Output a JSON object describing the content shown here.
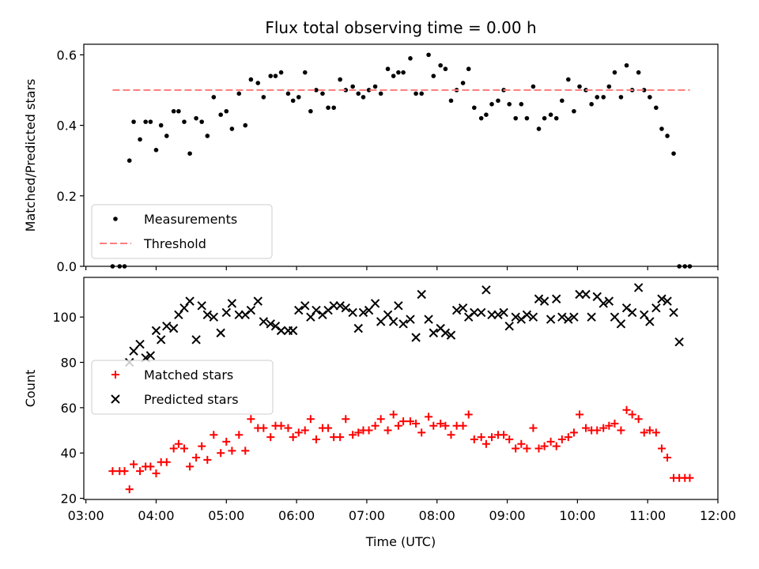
{
  "chart_data": {
    "title": "Flux total observing time = 0.00 h",
    "xlabel": "Time (UTC)",
    "x_ticks": [
      "03:00",
      "04:00",
      "05:00",
      "06:00",
      "07:00",
      "08:00",
      "09:00",
      "10:00",
      "11:00",
      "12:00"
    ],
    "x_range_hours": [
      2.97,
      12.0
    ],
    "panels": [
      {
        "name": "ratio-panel",
        "type": "scatter",
        "ylabel": "Matched/Predicted stars",
        "ylim": [
          0,
          0.63
        ],
        "y_ticks": [
          0.0,
          0.2,
          0.4,
          0.6
        ],
        "legend_position": "lower-left",
        "series": [
          {
            "name": "Measurements",
            "marker": "dot",
            "color": "#000000",
            "x": [
              3.38,
              3.48,
              3.55,
              3.62,
              3.68,
              3.77,
              3.85,
              3.92,
              4.0,
              4.07,
              4.15,
              4.25,
              4.32,
              4.4,
              4.48,
              4.57,
              4.65,
              4.73,
              4.82,
              4.92,
              5.0,
              5.08,
              5.18,
              5.27,
              5.35,
              5.45,
              5.53,
              5.63,
              5.7,
              5.78,
              5.88,
              5.95,
              6.03,
              6.12,
              6.2,
              6.28,
              6.37,
              6.45,
              6.53,
              6.62,
              6.7,
              6.8,
              6.88,
              6.95,
              7.03,
              7.12,
              7.2,
              7.3,
              7.38,
              7.45,
              7.52,
              7.62,
              7.7,
              7.78,
              7.88,
              7.95,
              8.05,
              8.12,
              8.2,
              8.28,
              8.37,
              8.45,
              8.53,
              8.63,
              8.7,
              8.78,
              8.87,
              8.95,
              9.03,
              9.12,
              9.2,
              9.28,
              9.37,
              9.45,
              9.53,
              9.62,
              9.7,
              9.78,
              9.87,
              9.95,
              10.03,
              10.12,
              10.2,
              10.28,
              10.37,
              10.45,
              10.53,
              10.62,
              10.7,
              10.78,
              10.87,
              10.95,
              11.03,
              11.12,
              11.2,
              11.28,
              11.37,
              11.45,
              11.53,
              11.6
            ],
            "y": [
              0.0,
              0.0,
              0.0,
              0.3,
              0.41,
              0.36,
              0.41,
              0.41,
              0.33,
              0.4,
              0.37,
              0.44,
              0.44,
              0.41,
              0.32,
              0.42,
              0.41,
              0.37,
              0.48,
              0.43,
              0.44,
              0.39,
              0.49,
              0.4,
              0.53,
              0.52,
              0.48,
              0.54,
              0.54,
              0.55,
              0.49,
              0.47,
              0.48,
              0.55,
              0.44,
              0.5,
              0.49,
              0.45,
              0.45,
              0.53,
              0.5,
              0.51,
              0.49,
              0.48,
              0.5,
              0.51,
              0.49,
              0.56,
              0.54,
              0.55,
              0.55,
              0.59,
              0.49,
              0.49,
              0.6,
              0.54,
              0.57,
              0.56,
              0.47,
              0.5,
              0.52,
              0.56,
              0.45,
              0.42,
              0.43,
              0.46,
              0.47,
              0.5,
              0.46,
              0.42,
              0.46,
              0.42,
              0.51,
              0.39,
              0.42,
              0.43,
              0.42,
              0.47,
              0.53,
              0.44,
              0.51,
              0.5,
              0.46,
              0.48,
              0.48,
              0.51,
              0.55,
              0.48,
              0.57,
              0.5,
              0.55,
              0.5,
              0.48,
              0.45,
              0.39,
              0.37,
              0.32,
              0.0,
              0.0,
              0.0
            ]
          },
          {
            "name": "Threshold",
            "marker": "dashed-line",
            "color": "#ff7f7f",
            "x": [
              3.38,
              11.6
            ],
            "y": [
              0.5,
              0.5
            ]
          }
        ]
      },
      {
        "name": "count-panel",
        "type": "scatter",
        "ylabel": "Count",
        "ylim": [
          19.5,
          117.5
        ],
        "y_ticks": [
          20,
          40,
          60,
          80,
          100
        ],
        "legend_position": "center-left",
        "series": [
          {
            "name": "Matched stars",
            "marker": "plus",
            "color": "#ff0000",
            "x": [
              3.38,
              3.48,
              3.55,
              3.62,
              3.68,
              3.77,
              3.85,
              3.92,
              4.0,
              4.07,
              4.15,
              4.25,
              4.32,
              4.4,
              4.48,
              4.57,
              4.65,
              4.73,
              4.82,
              4.92,
              5.0,
              5.08,
              5.18,
              5.27,
              5.35,
              5.45,
              5.53,
              5.63,
              5.7,
              5.78,
              5.88,
              5.95,
              6.03,
              6.12,
              6.2,
              6.28,
              6.37,
              6.45,
              6.53,
              6.62,
              6.7,
              6.8,
              6.88,
              6.95,
              7.03,
              7.12,
              7.2,
              7.3,
              7.38,
              7.45,
              7.52,
              7.62,
              7.7,
              7.78,
              7.88,
              7.95,
              8.05,
              8.12,
              8.2,
              8.28,
              8.37,
              8.45,
              8.53,
              8.63,
              8.7,
              8.78,
              8.87,
              8.95,
              9.03,
              9.12,
              9.2,
              9.28,
              9.37,
              9.45,
              9.53,
              9.62,
              9.7,
              9.78,
              9.87,
              9.95,
              10.03,
              10.12,
              10.2,
              10.28,
              10.37,
              10.45,
              10.53,
              10.62,
              10.7,
              10.78,
              10.87,
              10.95,
              11.03,
              11.12,
              11.2,
              11.28,
              11.37,
              11.45,
              11.53,
              11.6
            ],
            "y": [
              32,
              32,
              32,
              24,
              35,
              32,
              34,
              34,
              31,
              36,
              36,
              42,
              44,
              42,
              34,
              38,
              43,
              37,
              48,
              40,
              45,
              41,
              48,
              41,
              55,
              51,
              51,
              47,
              52,
              52,
              51,
              47,
              49,
              50,
              55,
              46,
              51,
              51,
              47,
              47,
              55,
              48,
              49,
              50,
              50,
              52,
              55,
              50,
              57,
              52,
              54,
              54,
              53,
              49,
              56,
              52,
              53,
              52,
              48,
              52,
              52,
              57,
              46,
              47,
              44,
              47,
              48,
              48,
              46,
              42,
              44,
              42,
              51,
              42,
              43,
              45,
              43,
              46,
              47,
              49,
              57,
              51,
              50,
              50,
              51,
              52,
              53,
              50,
              59,
              57,
              55,
              49,
              50,
              49,
              42,
              38,
              29,
              29,
              29,
              29
            ]
          },
          {
            "name": "Predicted stars",
            "marker": "x",
            "color": "#000000",
            "x": [
              3.62,
              3.68,
              3.77,
              3.85,
              3.92,
              4.0,
              4.07,
              4.15,
              4.25,
              4.32,
              4.4,
              4.48,
              4.57,
              4.65,
              4.73,
              4.82,
              4.92,
              5.0,
              5.08,
              5.18,
              5.27,
              5.35,
              5.45,
              5.53,
              5.63,
              5.7,
              5.78,
              5.88,
              5.95,
              6.03,
              6.12,
              6.2,
              6.28,
              6.37,
              6.45,
              6.53,
              6.62,
              6.7,
              6.8,
              6.88,
              6.95,
              7.03,
              7.12,
              7.2,
              7.3,
              7.38,
              7.45,
              7.52,
              7.62,
              7.7,
              7.78,
              7.88,
              7.95,
              8.05,
              8.12,
              8.2,
              8.28,
              8.37,
              8.45,
              8.53,
              8.63,
              8.7,
              8.78,
              8.87,
              8.95,
              9.03,
              9.12,
              9.2,
              9.28,
              9.37,
              9.45,
              9.53,
              9.62,
              9.7,
              9.78,
              9.87,
              9.95,
              10.03,
              10.12,
              10.2,
              10.28,
              10.37,
              10.45,
              10.53,
              10.62,
              10.7,
              10.78,
              10.87,
              10.95,
              11.03,
              11.12,
              11.2,
              11.28,
              11.37,
              11.45
            ],
            "y": [
              80,
              85,
              88,
              82,
              83,
              94,
              90,
              96,
              95,
              101,
              104,
              107,
              90,
              105,
              101,
              100,
              93,
              102,
              106,
              101,
              101,
              103,
              107,
              98,
              97,
              96,
              94,
              94,
              94,
              103,
              105,
              100,
              103,
              101,
              103,
              105,
              105,
              104,
              102,
              95,
              102,
              103,
              106,
              98,
              101,
              98,
              105,
              97,
              99,
              91,
              110,
              99,
              93,
              95,
              93,
              92,
              103,
              104,
              100,
              102,
              102,
              112,
              101,
              101,
              102,
              96,
              100,
              99,
              101,
              100,
              108,
              107,
              99,
              108,
              100,
              99,
              100,
              110,
              110,
              100,
              109,
              106,
              107,
              100,
              97,
              104,
              102,
              113,
              101,
              98,
              104,
              108,
              107,
              102,
              89
            ]
          }
        ]
      }
    ]
  }
}
